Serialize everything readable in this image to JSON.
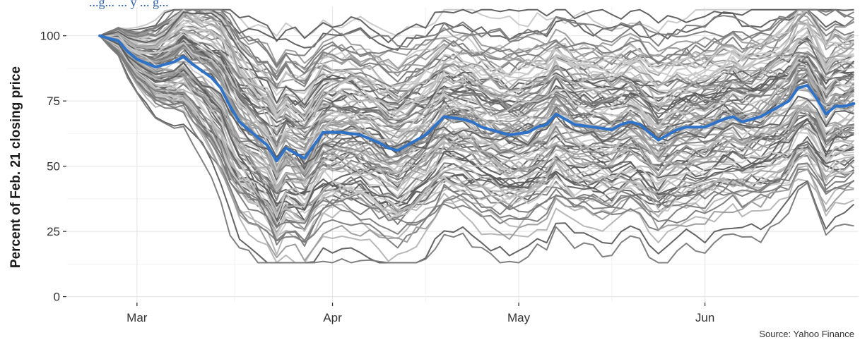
{
  "chart_data": {
    "type": "line",
    "title": "",
    "subtitle_fragment": "...g... ... y ... g...",
    "ylabel": "Percent of Feb. 21 closing price",
    "xlabel": "",
    "caption": "Source: Yahoo Finance",
    "y_ticks": [
      0,
      25,
      50,
      75,
      100
    ],
    "y_tick_labels": [
      "0",
      "25",
      "50",
      "75",
      "100"
    ],
    "x_tick_labels": [
      "Mar",
      "Apr",
      "May",
      "Jun"
    ],
    "ylim": [
      -2,
      111
    ],
    "xlim": [
      -3.5,
      81.5
    ],
    "grid": true,
    "colors": {
      "highlight": "#2f73c9",
      "background_lines": [
        "#5c5c5c",
        "#7a7a7a",
        "#9a9a9a",
        "#b4b4b4",
        "#c8c8c8"
      ],
      "grid": "#e8e8e8"
    },
    "highlight_series": {
      "x": [
        0,
        2,
        3,
        4,
        6,
        8,
        9,
        10,
        12,
        13,
        14,
        15,
        16,
        18,
        19,
        20,
        21,
        22,
        23,
        24,
        26,
        28,
        30,
        31,
        32,
        33,
        34,
        35,
        37,
        39,
        40,
        41,
        42,
        44,
        46,
        47,
        48,
        49,
        51,
        53,
        55,
        56,
        57,
        58,
        60,
        61,
        62,
        63,
        65,
        67,
        68,
        69,
        71,
        73,
        74,
        75,
        76,
        77,
        78,
        79,
        80,
        81
      ],
      "y": [
        100,
        98,
        94,
        91,
        88,
        90,
        92,
        89,
        84,
        80,
        73,
        67,
        64,
        58,
        52,
        57,
        55,
        53,
        58,
        63,
        63,
        62,
        59,
        57,
        56,
        58,
        60,
        62,
        69,
        68,
        67,
        65,
        64,
        62,
        63,
        65,
        66,
        70,
        66,
        65,
        64,
        66,
        67,
        66,
        60,
        62,
        64,
        65,
        65,
        68,
        69,
        67,
        69,
        73,
        75,
        80,
        81,
        76,
        70,
        73,
        73,
        74
      ]
    },
    "background_series_count": 120,
    "background_profiles": {
      "start": 100,
      "min_end_range": [
        18,
        108
      ],
      "trough_range": [
        14,
        100
      ]
    },
    "x_tick_positions": [
      4,
      25,
      45,
      65
    ]
  }
}
